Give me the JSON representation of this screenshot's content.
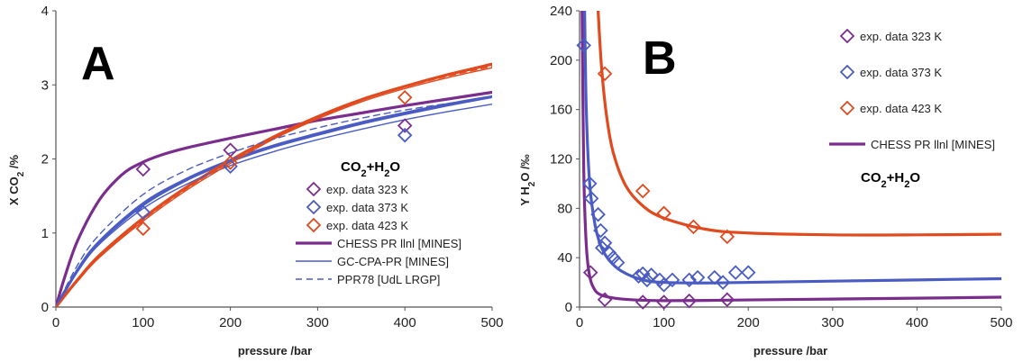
{
  "colors": {
    "purple": "#7B2D8E",
    "blue": "#4A5CC4",
    "red": "#E04A1E",
    "axis": "#555555"
  },
  "chart_data": [
    {
      "panel": "A",
      "type": "line",
      "ylabel_parts": {
        "pre": "X CO",
        "sub": "2",
        "post": " /%"
      },
      "xlabel": "pressure /bar",
      "xlim": [
        0,
        500
      ],
      "ylim": [
        0,
        4
      ],
      "xticks": [
        0,
        100,
        200,
        300,
        400,
        500
      ],
      "yticks": [
        0,
        1,
        2,
        3,
        4
      ],
      "grid": false,
      "legend_title": {
        "a": "CO",
        "b": "2",
        "c": "+H",
        "d": "2",
        "e": "O"
      },
      "legend": [
        {
          "label": "exp. data 323 K",
          "kind": "marker",
          "color": "purple"
        },
        {
          "label": "exp. data 373 K",
          "kind": "marker",
          "color": "blue"
        },
        {
          "label": "exp. data 423 K",
          "kind": "marker",
          "color": "red"
        },
        {
          "label": "CHESS PR llnl [MINES]",
          "kind": "thick",
          "color": "purple"
        },
        {
          "label": "GC-CPA-PR [MINES]",
          "kind": "thin",
          "color": "blue"
        },
        {
          "label": "PPR78 [UdL LRGP]",
          "kind": "dash",
          "color": "blue"
        }
      ],
      "series": [
        {
          "name": "exp. data 323 K",
          "kind": "marker",
          "color": "purple",
          "x": [
            100,
            200,
            400
          ],
          "y": [
            1.86,
            2.12,
            2.45
          ]
        },
        {
          "name": "exp. data 373 K",
          "kind": "marker",
          "color": "blue",
          "x": [
            100,
            200,
            400
          ],
          "y": [
            1.28,
            1.9,
            2.32
          ]
        },
        {
          "name": "exp. data 423 K",
          "kind": "marker",
          "color": "red",
          "x": [
            100,
            200,
            400
          ],
          "y": [
            1.06,
            1.95,
            2.83
          ]
        },
        {
          "name": "CHESS PR llnl [MINES] 323 K",
          "kind": "thick",
          "color": "purple",
          "x": [
            0,
            10,
            25,
            50,
            75,
            95,
            120,
            150,
            200,
            250,
            300,
            350,
            400,
            450,
            500
          ],
          "y": [
            0,
            0.4,
            0.9,
            1.45,
            1.78,
            1.93,
            2.05,
            2.15,
            2.28,
            2.4,
            2.52,
            2.62,
            2.72,
            2.81,
            2.9
          ]
        },
        {
          "name": "CHESS PR llnl [MINES] 373 K",
          "kind": "thick",
          "color": "blue",
          "x": [
            0,
            25,
            50,
            100,
            150,
            200,
            250,
            300,
            350,
            400,
            450,
            500
          ],
          "y": [
            0,
            0.5,
            0.88,
            1.38,
            1.72,
            1.97,
            2.17,
            2.33,
            2.48,
            2.61,
            2.73,
            2.84
          ]
        },
        {
          "name": "CHESS PR llnl [MINES] 423 K",
          "kind": "thick",
          "color": "red",
          "x": [
            0,
            25,
            50,
            100,
            150,
            200,
            250,
            300,
            350,
            400,
            450,
            500
          ],
          "y": [
            0,
            0.37,
            0.7,
            1.2,
            1.62,
            1.98,
            2.3,
            2.57,
            2.8,
            2.98,
            3.14,
            3.28
          ]
        },
        {
          "name": "GC-CPA-PR [MINES] 373 K a",
          "kind": "thin",
          "color": "blue",
          "x": [
            0,
            25,
            50,
            100,
            150,
            200,
            250,
            300,
            350,
            400,
            450,
            500
          ],
          "y": [
            0,
            0.48,
            0.85,
            1.33,
            1.66,
            1.91,
            2.1,
            2.26,
            2.4,
            2.53,
            2.64,
            2.74
          ]
        },
        {
          "name": "GC-CPA-PR [MINES] 373 K b",
          "kind": "thin",
          "color": "blue",
          "x": [
            0,
            25,
            50,
            100,
            150,
            200,
            250,
            300,
            350,
            400,
            450,
            500
          ],
          "y": [
            0,
            0.52,
            0.9,
            1.41,
            1.74,
            1.99,
            2.19,
            2.35,
            2.5,
            2.63,
            2.75,
            2.85
          ]
        },
        {
          "name": "GC-CPA-PR [MINES] 423 K",
          "kind": "thin",
          "color": "red",
          "x": [
            0,
            25,
            50,
            100,
            150,
            200,
            250,
            300,
            350,
            400,
            450,
            500
          ],
          "y": [
            0,
            0.35,
            0.67,
            1.16,
            1.58,
            1.94,
            2.27,
            2.54,
            2.77,
            2.95,
            3.1,
            3.23
          ]
        },
        {
          "name": "PPR78 [UdL LRGP] 373 K",
          "kind": "dash",
          "color": "blue",
          "x": [
            0,
            25,
            50,
            100,
            150,
            200,
            250,
            300,
            350,
            400,
            450,
            500
          ],
          "y": [
            0,
            0.57,
            0.98,
            1.52,
            1.85,
            2.08,
            2.27,
            2.42,
            2.55,
            2.66,
            2.75,
            2.83
          ]
        },
        {
          "name": "PPR78 [UdL LRGP] 423 K",
          "kind": "dash",
          "color": "red",
          "x": [
            0,
            25,
            50,
            100,
            150,
            200,
            250,
            300,
            350,
            400,
            450,
            500
          ],
          "y": [
            0,
            0.36,
            0.68,
            1.18,
            1.6,
            1.96,
            2.28,
            2.55,
            2.79,
            2.97,
            3.12,
            3.25
          ]
        }
      ]
    },
    {
      "panel": "B",
      "type": "line",
      "ylabel_parts": {
        "pre": "Y H",
        "sub": "2",
        "post": "O /‰"
      },
      "xlabel": "pressure /bar",
      "xlim": [
        0,
        500
      ],
      "ylim": [
        0,
        240
      ],
      "xticks": [
        0,
        100,
        200,
        300,
        400,
        500
      ],
      "yticks": [
        0,
        40,
        80,
        120,
        160,
        200,
        240
      ],
      "grid": false,
      "legend_title": {
        "a": "CO",
        "b": "2",
        "c": "+H",
        "d": "2",
        "e": "O"
      },
      "legend": [
        {
          "label": "exp. data 323 K",
          "kind": "marker",
          "color": "purple"
        },
        {
          "label": "exp. data 373 K",
          "kind": "marker",
          "color": "blue"
        },
        {
          "label": "exp. data 423 K",
          "kind": "marker",
          "color": "red"
        },
        {
          "label": "CHESS PR llnl [MINES]",
          "kind": "thick",
          "color": "purple"
        }
      ],
      "series": [
        {
          "name": "exp. data 323 K",
          "kind": "marker",
          "color": "purple",
          "x": [
            13,
            30,
            75,
            100,
            130,
            175
          ],
          "y": [
            28,
            6,
            4,
            4,
            5,
            6
          ]
        },
        {
          "name": "exp. data 373 K",
          "kind": "marker",
          "color": "blue",
          "x": [
            5,
            12,
            14,
            22,
            25,
            27,
            30,
            35,
            40,
            45,
            70,
            75,
            80,
            85,
            95,
            100,
            110,
            130,
            140,
            160,
            170,
            185,
            200
          ],
          "y": [
            212,
            100,
            88,
            75,
            62,
            48,
            52,
            44,
            40,
            36,
            25,
            27,
            22,
            26,
            22,
            18,
            22,
            22,
            24,
            24,
            20,
            28,
            28
          ]
        },
        {
          "name": "exp. data 423 K",
          "kind": "marker",
          "color": "red",
          "x": [
            30,
            75,
            100,
            135,
            175
          ],
          "y": [
            189,
            94,
            76,
            65,
            57
          ]
        },
        {
          "name": "CHESS PR llnl [MINES] 323 K",
          "kind": "thick",
          "color": "purple",
          "x": [
            3,
            5,
            8,
            12,
            18,
            25,
            35,
            50,
            75,
            100,
            150,
            200,
            300,
            400,
            500
          ],
          "y": [
            240,
            110,
            50,
            25,
            14,
            10,
            8,
            6.5,
            5.5,
            5.2,
            5.4,
            5.8,
            6.5,
            7.2,
            8
          ]
        },
        {
          "name": "CHESS PR llnl [MINES] 373 K",
          "kind": "thick",
          "color": "blue",
          "x": [
            6,
            8,
            12,
            18,
            25,
            35,
            50,
            75,
            100,
            150,
            200,
            300,
            400,
            500
          ],
          "y": [
            240,
            160,
            100,
            68,
            50,
            38,
            29,
            22,
            20,
            19.5,
            20,
            21,
            22,
            23
          ]
        },
        {
          "name": "CHESS PR llnl [MINES] 423 K",
          "kind": "thick",
          "color": "red",
          "x": [
            22,
            26,
            32,
            40,
            55,
            75,
            100,
            150,
            200,
            300,
            400,
            500
          ],
          "y": [
            240,
            195,
            155,
            125,
            98,
            82,
            72,
            63,
            60,
            58.5,
            58.5,
            59
          ]
        }
      ]
    }
  ],
  "panels": [
    {
      "letter": "A"
    },
    {
      "letter": "B"
    }
  ]
}
